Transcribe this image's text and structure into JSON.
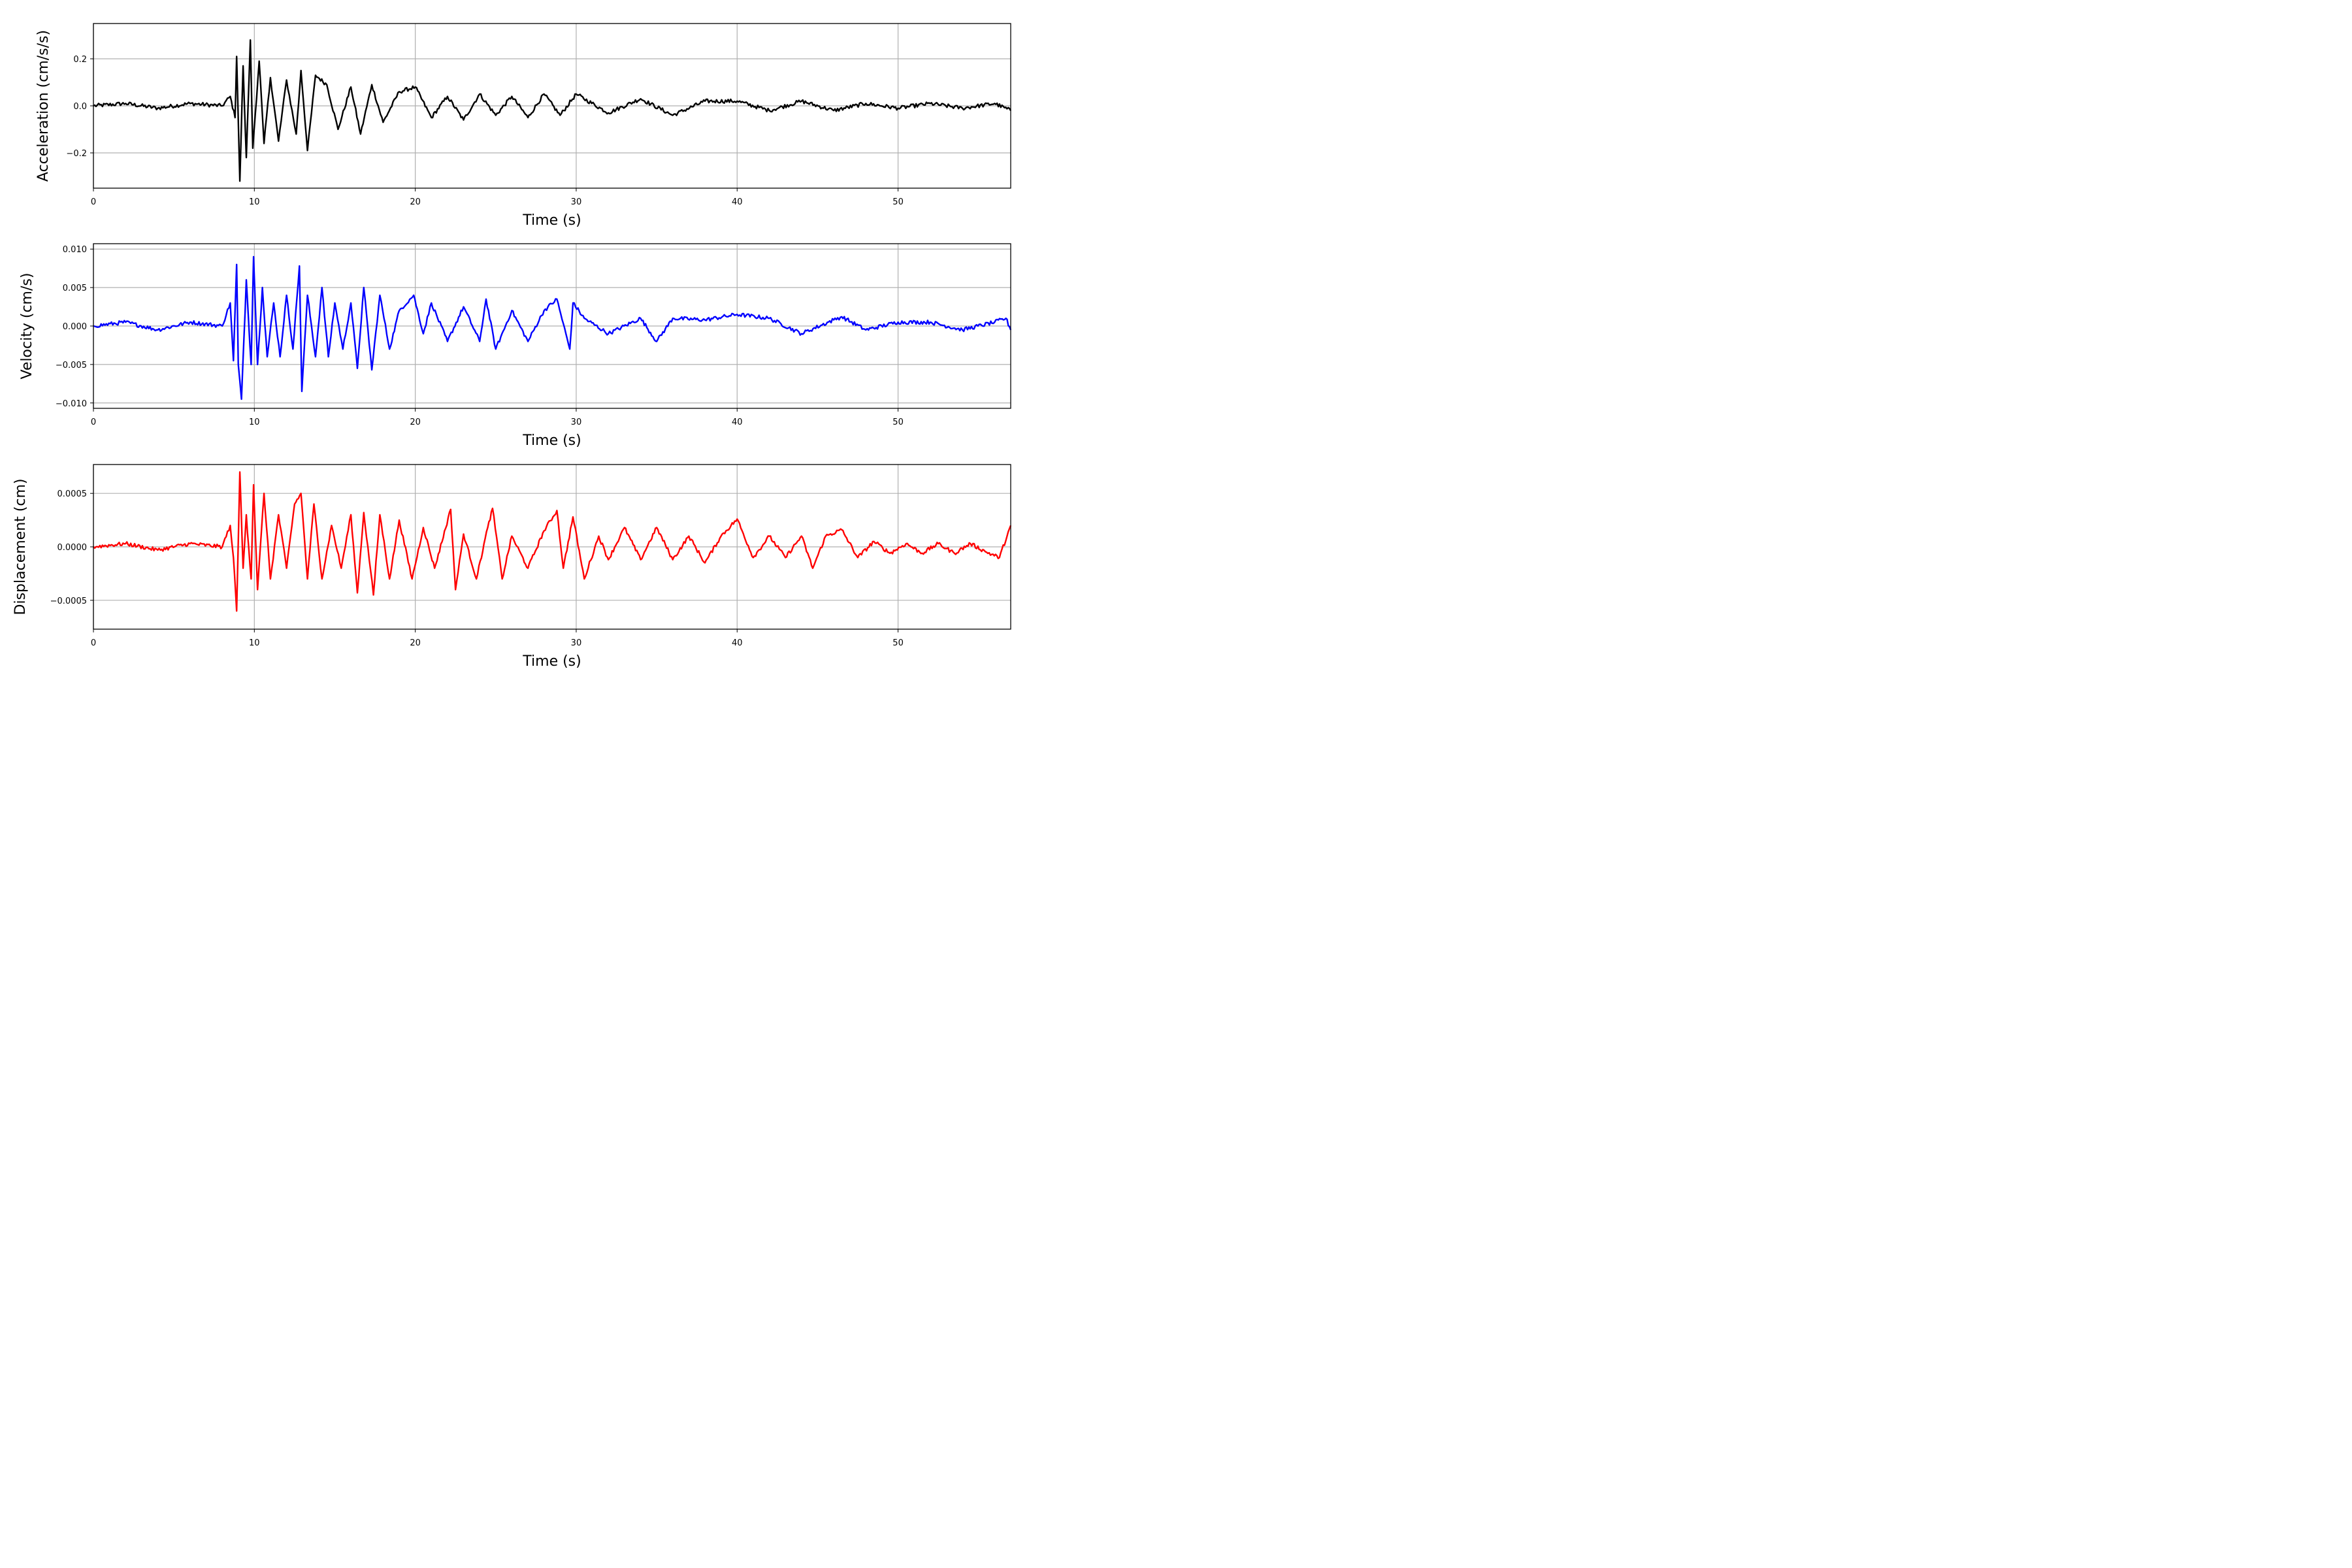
{
  "chart_data": [
    {
      "type": "line",
      "color": "#000000",
      "xlabel": "Time (s)",
      "ylabel": "Acceleration (cm/s/s)",
      "xlim": [
        0,
        57
      ],
      "ylim": [
        -0.35,
        0.35
      ],
      "xticks": [
        0,
        10,
        20,
        30,
        40,
        50
      ],
      "xtick_labels": [
        "0",
        "10",
        "20",
        "30",
        "40",
        "50"
      ],
      "yticks": [
        -0.2,
        0.0,
        0.2
      ],
      "ytick_labels": [
        "−0.2",
        "0.0",
        "0.2"
      ],
      "grid": true,
      "series": [
        {
          "x": [
            0,
            2,
            4,
            6,
            8,
            8.5,
            8.8,
            8.9,
            9.1,
            9.3,
            9.5,
            9.75,
            9.9,
            10.3,
            10.6,
            11.0,
            11.5,
            12.0,
            12.6,
            12.9,
            13.3,
            13.8,
            14.5,
            15.2,
            16.0,
            16.6,
            17.3,
            18.0,
            19.0,
            20.0,
            21.0,
            22.0,
            23.0,
            24.0,
            25.0,
            26.0,
            27.0,
            28.0,
            29.0,
            30.0,
            32.0,
            34.0,
            36.0,
            38.0,
            40.0,
            42.0,
            44.0,
            46.0,
            48.0,
            50.0,
            52.0,
            54.0,
            56.0,
            57.0
          ],
          "y": [
            0.0,
            0.01,
            -0.01,
            0.01,
            0.0,
            0.04,
            -0.05,
            0.21,
            -0.32,
            0.17,
            -0.22,
            0.28,
            -0.18,
            0.19,
            -0.16,
            0.12,
            -0.15,
            0.11,
            -0.12,
            0.15,
            -0.19,
            0.13,
            0.09,
            -0.1,
            0.08,
            -0.12,
            0.09,
            -0.07,
            0.06,
            0.08,
            -0.05,
            0.04,
            -0.06,
            0.05,
            -0.04,
            0.04,
            -0.05,
            0.05,
            -0.04,
            0.05,
            -0.03,
            0.03,
            -0.04,
            0.02,
            0.02,
            -0.02,
            0.02,
            -0.02,
            0.01,
            -0.01,
            0.01,
            -0.01,
            0.01,
            -0.02
          ]
        }
      ]
    },
    {
      "type": "line",
      "color": "#0000ff",
      "xlabel": "Time (s)",
      "ylabel": "Velocity (cm/s)",
      "xlim": [
        0,
        57
      ],
      "ylim": [
        -0.0107,
        0.0107
      ],
      "xticks": [
        0,
        10,
        20,
        30,
        40,
        50
      ],
      "xtick_labels": [
        "0",
        "10",
        "20",
        "30",
        "40",
        "50"
      ],
      "yticks": [
        -0.01,
        -0.005,
        0.0,
        0.005,
        0.01
      ],
      "ytick_labels": [
        "−0.010",
        "−0.005",
        "0.000",
        "0.005",
        "0.010"
      ],
      "grid": true,
      "series": [
        {
          "x": [
            0,
            2,
            4,
            6,
            8,
            8.5,
            8.7,
            8.9,
            9.0,
            9.2,
            9.5,
            9.8,
            9.95,
            10.2,
            10.5,
            10.8,
            11.2,
            11.6,
            12.0,
            12.4,
            12.8,
            12.95,
            13.3,
            13.8,
            14.2,
            14.6,
            15.0,
            15.5,
            16.0,
            16.4,
            16.8,
            17.3,
            17.8,
            18.4,
            19.0,
            19.9,
            20.5,
            21.0,
            22.0,
            23.0,
            24.0,
            24.4,
            25.0,
            26.0,
            27.0,
            28.0,
            28.8,
            29.6,
            29.8,
            30.5,
            32.0,
            34.0,
            35.0,
            36.0,
            38.0,
            40.0,
            42.0,
            44.0,
            46.0,
            46.5,
            48.0,
            50.0,
            52.0,
            54.0,
            56.0,
            56.7,
            57.0
          ],
          "y": [
            0.0,
            0.0005,
            -0.0005,
            0.0005,
            0.0,
            0.003,
            -0.0045,
            0.008,
            -0.005,
            -0.0095,
            0.006,
            -0.005,
            0.009,
            -0.005,
            0.005,
            -0.004,
            0.003,
            -0.004,
            0.004,
            -0.003,
            0.0078,
            -0.0085,
            0.004,
            -0.004,
            0.005,
            -0.004,
            0.003,
            -0.003,
            0.003,
            -0.0055,
            0.005,
            -0.0057,
            0.004,
            -0.003,
            0.002,
            0.004,
            -0.001,
            0.003,
            -0.002,
            0.0025,
            -0.002,
            0.0035,
            -0.003,
            0.002,
            -0.002,
            0.002,
            0.0035,
            -0.003,
            0.003,
            0.001,
            -0.001,
            0.001,
            -0.002,
            0.001,
            0.0008,
            0.0015,
            0.001,
            -0.001,
            0.0008,
            0.0012,
            -0.0005,
            0.0005,
            0.0005,
            -0.0005,
            0.0005,
            0.001,
            -0.0005
          ]
        }
      ]
    },
    {
      "type": "line",
      "color": "#ff0000",
      "xlabel": "Time (s)",
      "ylabel": "Displacement (cm)",
      "xlim": [
        0,
        57
      ],
      "ylim": [
        -0.00077,
        0.00077
      ],
      "xticks": [
        0,
        10,
        20,
        30,
        40,
        50
      ],
      "xtick_labels": [
        "0",
        "10",
        "20",
        "30",
        "40",
        "50"
      ],
      "yticks": [
        -0.0005,
        0.0,
        0.0005
      ],
      "ytick_labels": [
        "−0.0005",
        "0.0000",
        "0.0005"
      ],
      "grid": true,
      "series": [
        {
          "x": [
            0,
            2,
            4,
            6,
            8,
            8.5,
            8.7,
            8.9,
            9.1,
            9.3,
            9.5,
            9.8,
            9.95,
            10.2,
            10.6,
            11.0,
            11.5,
            12.0,
            12.5,
            12.9,
            13.3,
            13.7,
            14.2,
            14.8,
            15.4,
            16.0,
            16.4,
            16.8,
            17.4,
            17.8,
            18.4,
            19.0,
            19.8,
            20.5,
            21.2,
            22.2,
            22.5,
            23.0,
            23.8,
            24.5,
            24.8,
            25.4,
            26.0,
            27.0,
            28.0,
            28.8,
            29.2,
            29.8,
            30.5,
            31.4,
            32.0,
            33.0,
            34.0,
            35.0,
            36.0,
            37.0,
            38.0,
            39.0,
            40.0,
            41.0,
            42.0,
            43.0,
            44.0,
            44.7,
            45.5,
            46.5,
            47.5,
            48.5,
            49.5,
            50.5,
            51.5,
            52.5,
            53.5,
            54.5,
            55.5,
            56.3,
            57.0
          ],
          "y": [
            0.0,
            3e-05,
            -3e-05,
            3e-05,
            0.0,
            0.0002,
            -0.0001,
            -0.0006,
            0.0007,
            -0.0002,
            0.0003,
            -0.0003,
            0.00058,
            -0.0004,
            0.0005,
            -0.0003,
            0.0003,
            -0.0002,
            0.0004,
            0.0005,
            -0.0003,
            0.0004,
            -0.0003,
            0.0002,
            -0.0002,
            0.0003,
            -0.00043,
            0.00032,
            -0.00045,
            0.0003,
            -0.0003,
            0.00025,
            -0.0003,
            0.00018,
            -0.0002,
            0.00035,
            -0.0004,
            0.00012,
            -0.0003,
            0.00018,
            0.00036,
            -0.0003,
            0.0001,
            -0.0002,
            0.00015,
            0.00034,
            -0.0002,
            0.00028,
            -0.0003,
            0.0001,
            -0.00012,
            0.00018,
            -0.00012,
            0.00018,
            -0.00012,
            0.0001,
            -0.00015,
            0.0001,
            0.00026,
            -0.0001,
            0.0001,
            -0.0001,
            0.0001,
            -0.0002,
            0.0001,
            0.00016,
            -0.0001,
            5e-05,
            -6e-05,
            3e-05,
            -6e-05,
            3e-05,
            -6e-05,
            3e-05,
            -5e-05,
            -0.0001,
            0.0002
          ]
        }
      ]
    }
  ]
}
